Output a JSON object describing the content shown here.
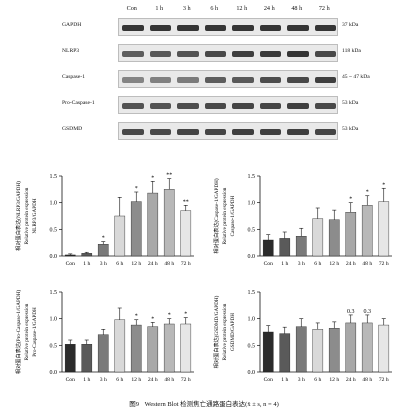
{
  "western_blot": {
    "lanes": [
      "Con",
      "1 h",
      "3 h",
      "6 h",
      "12 h",
      "24 h",
      "48 h",
      "72 h"
    ],
    "rows": [
      {
        "label": "GAPDH",
        "size": "37 kDa",
        "intensity": [
          0.9,
          0.9,
          0.9,
          0.9,
          0.9,
          0.9,
          0.9,
          0.9
        ]
      },
      {
        "label": "NLRP3",
        "size": "118 kDa",
        "intensity": [
          0.7,
          0.72,
          0.75,
          0.8,
          0.85,
          0.88,
          0.9,
          0.8
        ]
      },
      {
        "label": "Caspase-1",
        "size": "45 ~ 47 kDa",
        "intensity": [
          0.5,
          0.52,
          0.55,
          0.7,
          0.72,
          0.78,
          0.8,
          0.85
        ]
      },
      {
        "label": "Pro-Caspase-1",
        "size": "53 kDa",
        "intensity": [
          0.75,
          0.75,
          0.78,
          0.8,
          0.82,
          0.82,
          0.85,
          0.8
        ]
      },
      {
        "label": "GSDMD",
        "size": "53 kDa",
        "intensity": [
          0.8,
          0.8,
          0.82,
          0.82,
          0.85,
          0.85,
          0.85,
          0.82
        ]
      }
    ]
  },
  "chart_data": [
    {
      "type": "bar",
      "ylabel": [
        "相对蛋白表达(NLRP3/GAPDH)",
        "Relative protein expression",
        "NLRP3/GAPDH"
      ],
      "ylim": [
        0,
        1.5
      ],
      "yticks": [
        "0.0",
        "0.5",
        "1.0",
        "1.5"
      ],
      "categories": [
        "Con",
        "1 h",
        "3 h",
        "6 h",
        "12 h",
        "24 h",
        "48 h",
        "72 h"
      ],
      "values": [
        0.02,
        0.05,
        0.22,
        0.75,
        1.02,
        1.18,
        1.25,
        0.85
      ],
      "errors": [
        0.02,
        0.02,
        0.05,
        0.35,
        0.18,
        0.22,
        0.2,
        0.1
      ],
      "marks": [
        "",
        "",
        "*",
        "",
        "*",
        "*",
        "**",
        "**"
      ]
    },
    {
      "type": "bar",
      "ylabel": [
        "相对蛋白表达(Caspase-1/GAPDH)",
        "Relative protein expression",
        "Caspase-1/GAPDH"
      ],
      "ylim": [
        0,
        1.5
      ],
      "yticks": [
        "0.0",
        "0.5",
        "1.0",
        "1.5"
      ],
      "categories": [
        "Con",
        "1 h",
        "3 h",
        "6 h",
        "12 h",
        "24 h",
        "48 h",
        "72 h"
      ],
      "values": [
        0.3,
        0.33,
        0.37,
        0.7,
        0.68,
        0.82,
        0.95,
        1.02
      ],
      "errors": [
        0.1,
        0.12,
        0.15,
        0.2,
        0.18,
        0.18,
        0.18,
        0.25
      ],
      "marks": [
        "",
        "",
        "",
        "",
        "",
        "*",
        "*",
        "*"
      ]
    },
    {
      "type": "bar",
      "ylabel": [
        "相对蛋白表达(Pro-Caspase-1/GAPDH)",
        "Relative protein expression",
        "Pro-Caspase-1/GAPDH"
      ],
      "ylim": [
        0,
        1.5
      ],
      "yticks": [
        "0.0",
        "0.5",
        "1.0",
        "1.5"
      ],
      "categories": [
        "Con",
        "1 h",
        "3 h",
        "6 h",
        "12 h",
        "24 h",
        "48 h",
        "72 h"
      ],
      "values": [
        0.52,
        0.52,
        0.7,
        0.98,
        0.88,
        0.85,
        0.9,
        0.9
      ],
      "errors": [
        0.08,
        0.08,
        0.1,
        0.22,
        0.1,
        0.08,
        0.1,
        0.12
      ],
      "marks": [
        "",
        "",
        "",
        "",
        "*",
        "*",
        "*",
        "*"
      ]
    },
    {
      "type": "bar",
      "ylabel": [
        "相对蛋白表达(GSDMD/GAPDH)",
        "Relative protein expression",
        "GSDMD/GAPDH"
      ],
      "ylim": [
        0,
        1.5
      ],
      "yticks": [
        "0.0",
        "0.5",
        "1.0",
        "1.5"
      ],
      "categories": [
        "Con",
        "1 h",
        "3 h",
        "6 h",
        "12 h",
        "24 h",
        "48 h",
        "72 h"
      ],
      "values": [
        0.75,
        0.72,
        0.85,
        0.8,
        0.82,
        0.92,
        0.92,
        0.88
      ],
      "errors": [
        0.12,
        0.12,
        0.15,
        0.12,
        0.12,
        0.15,
        0.15,
        0.12
      ],
      "marks": [
        "",
        "",
        "",
        "",
        "",
        "0.3",
        "0.3",
        ""
      ]
    }
  ],
  "caption": {
    "figure": "图9",
    "text": "Western Blot 检测焦亡通路蛋白表达(x̄ ± s, n = 4)"
  },
  "colors": {
    "bars": [
      "#2b2b2b",
      "#5a5a5a",
      "#7a7a7a",
      "#d9d9d9",
      "#8c8c8c",
      "#a8a8a8",
      "#b8b8b8",
      "#e6e6e6"
    ],
    "axis": "#111111"
  }
}
